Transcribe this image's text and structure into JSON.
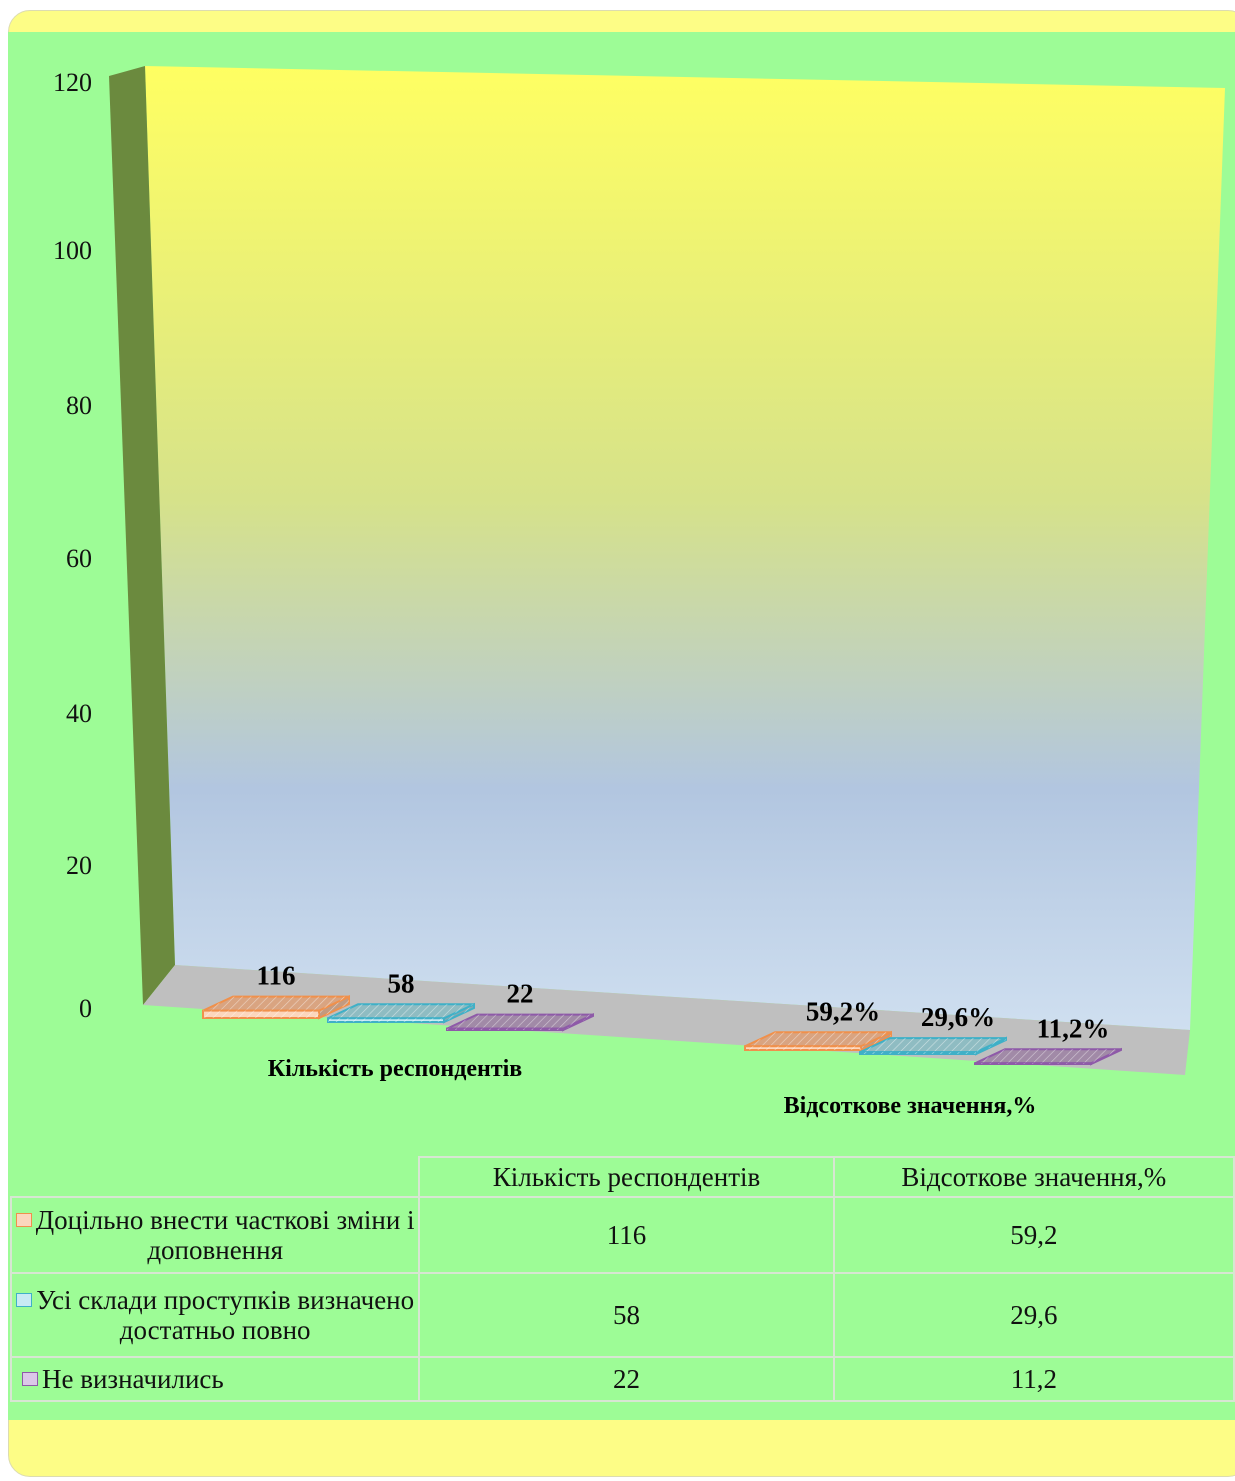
{
  "chart_data": {
    "type": "bar",
    "categories": [
      "Кількість респондентів",
      "Відсоткове значення,%"
    ],
    "ylim": [
      0,
      120
    ],
    "yticks": [
      0,
      20,
      40,
      60,
      80,
      100,
      120
    ],
    "series": [
      {
        "name": "Доцільно внести часткові зміни і доповнення",
        "values": [
          116,
          59.2
        ],
        "labels": [
          "116",
          "59,2%"
        ],
        "table_values": [
          "116",
          "59,2"
        ],
        "face": "#fcd6bd",
        "top": "#d9a481",
        "side": "#c29a80",
        "edge": "#f0904b"
      },
      {
        "name": "Усі склади проступків визначено достатньо повно",
        "values": [
          58,
          29.6
        ],
        "labels": [
          "58",
          "29,6%"
        ],
        "table_values": [
          "58",
          "29,6"
        ],
        "face": "#c8eaf3",
        "top": "#8fbcc2",
        "side": "#82aab2",
        "edge": "#3fb0c7"
      },
      {
        "name": "Не визначились",
        "values": [
          22,
          11.2
        ],
        "labels": [
          "22",
          "11,2%"
        ],
        "table_values": [
          "22",
          "11,2"
        ],
        "face": "#dbc8e8",
        "top": "#a18aa7",
        "side": "#9781a0",
        "edge": "#8e5aa8"
      }
    ]
  },
  "colors": {
    "frame": "#fdfd86",
    "panel": "#9dfc96",
    "left_wall": "#6b8a3e",
    "floor": "#bfbfbf"
  }
}
